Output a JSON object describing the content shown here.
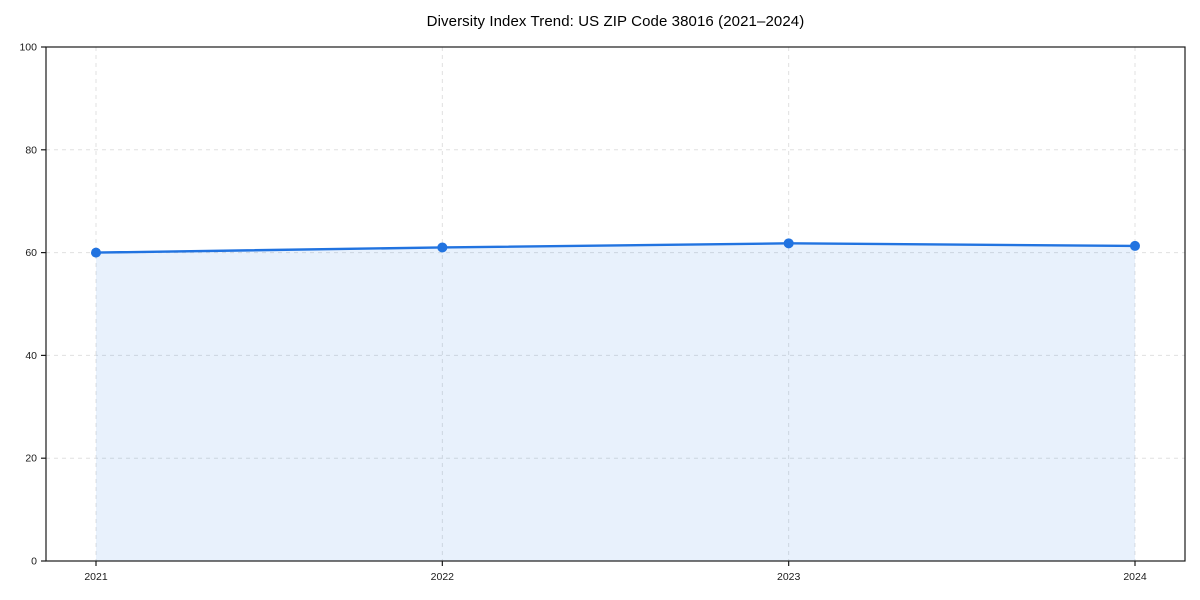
{
  "figure": {
    "background": "#ffffff"
  },
  "chart_data": {
    "type": "area",
    "title": "Diversity Index Trend: US ZIP Code 38016 (2021–2024)",
    "xlabel": "",
    "ylabel": "",
    "categories": [
      "2021",
      "2022",
      "2023",
      "2024"
    ],
    "series": [
      {
        "name": "Diversity Index",
        "values": [
          60.0,
          61.0,
          61.8,
          61.3
        ]
      }
    ],
    "ylim": [
      0,
      100
    ],
    "yticks": [
      0,
      20,
      40,
      60,
      80,
      100
    ],
    "grid": "on",
    "grid_style": "dashed",
    "legend_position": "none",
    "marker": "circle",
    "colors": {
      "line": "#2173e0",
      "marker": "#2173e0",
      "fill": "#2173e0",
      "fill_opacity": 0.1,
      "grid": "#e0e0e0",
      "spine": "#1a1a1a",
      "tick_label": "#1a1a1a",
      "title": "#000000"
    }
  }
}
